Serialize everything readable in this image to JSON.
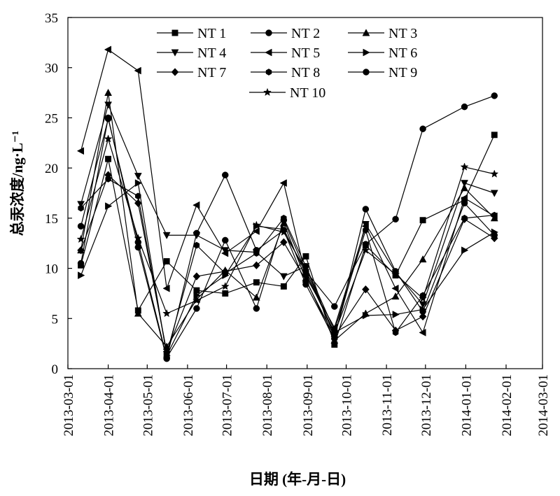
{
  "chart_data": {
    "type": "line",
    "title": "",
    "xlabel": "日期 (年-月-日)",
    "ylabel": "总汞浓度/ng·L⁻¹",
    "ylim": [
      0,
      35
    ],
    "yticks": [
      "0",
      "5",
      "10",
      "15",
      "20",
      "25",
      "30",
      "35"
    ],
    "xticks": [
      "2013-03-01",
      "2013-04-01",
      "2013-05-01",
      "2013-06-01",
      "2013-07-01",
      "2013-08-01",
      "2013-09-01",
      "2013-10-01",
      "2013-11-01",
      "2013-12-01",
      "2014-01-01",
      "2014-02-01",
      "2014-03-01"
    ],
    "xlim": [
      "2013-03-01",
      "2014-03-01"
    ],
    "grid": false,
    "legend_position": "top",
    "x": [
      "2013-03-11",
      "2013-04-01",
      "2013-04-24",
      "2013-05-16",
      "2013-06-08",
      "2013-06-30",
      "2013-07-24",
      "2013-08-14",
      "2013-08-31",
      "2013-09-22",
      "2013-10-16",
      "2013-11-08",
      "2013-11-29",
      "2013-12-31",
      "2014-01-23"
    ],
    "series": [
      {
        "name": "NT 1",
        "marker": "square",
        "values": [
          10.3,
          20.9,
          5.8,
          10.7,
          7.8,
          7.5,
          8.6,
          8.2,
          11.2,
          2.4,
          12.3,
          9.3,
          14.8,
          16.8,
          23.3
        ]
      },
      {
        "name": "NT 2",
        "marker": "circle",
        "values": [
          14.2,
          24.9,
          12.6,
          1.1,
          6.0,
          12.8,
          6.0,
          14.8,
          9.7,
          6.2,
          12.4,
          14.9,
          23.9,
          26.1,
          27.2
        ]
      },
      {
        "name": "NT 3",
        "marker": "triangle-up",
        "values": [
          11.8,
          27.5,
          5.5,
          2.2,
          6.9,
          9.8,
          7.1,
          14.5,
          8.9,
          2.8,
          5.5,
          7.2,
          10.9,
          18.0,
          15.0
        ]
      },
      {
        "name": "NT 4",
        "marker": "triangle-down",
        "values": [
          16.4,
          26.3,
          19.2,
          13.3,
          13.3,
          11.8,
          11.6,
          9.2,
          10.2,
          3.2,
          14.4,
          9.6,
          6.4,
          18.5,
          17.5
        ]
      },
      {
        "name": "NT 5",
        "marker": "triangle-left",
        "values": [
          21.7,
          31.8,
          29.7,
          8.0,
          16.3,
          11.5,
          13.7,
          18.5,
          9.2,
          4.1,
          14.2,
          8.0,
          3.6,
          17.0,
          15.2
        ]
      },
      {
        "name": "NT 6",
        "marker": "triangle-right",
        "values": [
          9.3,
          16.2,
          18.5,
          1.3,
          7.3,
          9.3,
          14.2,
          13.9,
          9.5,
          3.6,
          5.3,
          5.4,
          5.9,
          11.8,
          13.6
        ]
      },
      {
        "name": "NT 7",
        "marker": "diamond",
        "values": [
          11.8,
          19.3,
          16.5,
          1.7,
          9.2,
          9.7,
          10.3,
          12.6,
          8.8,
          3.2,
          7.9,
          3.8,
          5.2,
          14.9,
          13.0
        ]
      },
      {
        "name": "NT 8",
        "marker": "hexagon",
        "values": [
          16.0,
          18.9,
          17.2,
          1.5,
          12.3,
          9.5,
          11.5,
          15.0,
          10.2,
          3.8,
          13.8,
          3.6,
          7.3,
          15.0,
          15.3
        ]
      },
      {
        "name": "NT 9",
        "marker": "circle",
        "values": [
          10.5,
          25.0,
          12.1,
          1.0,
          13.5,
          19.3,
          11.8,
          13.8,
          8.4,
          3.0,
          15.9,
          9.7,
          5.7,
          16.5,
          13.3
        ]
      },
      {
        "name": "NT 10",
        "marker": "star",
        "values": [
          12.9,
          22.9,
          13.0,
          5.5,
          6.8,
          8.2,
          14.3,
          13.6,
          9.8,
          3.5,
          11.8,
          9.4,
          7.0,
          20.1,
          19.4
        ]
      }
    ]
  }
}
